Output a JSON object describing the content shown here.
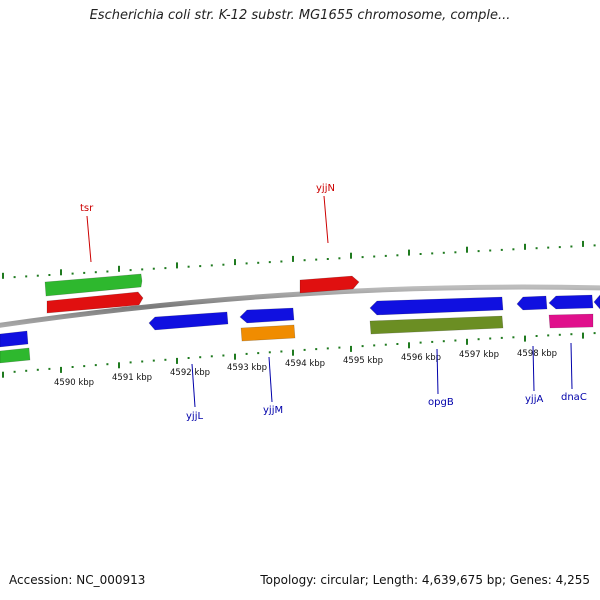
{
  "title": "Escherichia coli str. K-12 substr. MG1655 chromosome, comple...",
  "accession_text": "Accession: NC_000913",
  "stats_text": "Topology: circular; Length: 4,639,675 bp; Genes: 4,255",
  "colors": {
    "forward_label": "#cc0000",
    "reverse_label": "#0000aa",
    "tick": "#1f7a1f",
    "backbone": "#808080"
  },
  "scale_labels": [
    "4590 kbp",
    "4591 kbp",
    "4592 kbp",
    "4593 kbp",
    "4594 kbp",
    "4595 kbp",
    "4596 kbp",
    "4597 kbp",
    "4598 kbp"
  ],
  "gene_labels": [
    {
      "name": "tsr",
      "strand": "forward"
    },
    {
      "name": "yjjN",
      "strand": "forward"
    },
    {
      "name": "yjjL",
      "strand": "reverse"
    },
    {
      "name": "yjjM",
      "strand": "reverse"
    },
    {
      "name": "opgB",
      "strand": "reverse"
    },
    {
      "name": "yjjA",
      "strand": "reverse"
    },
    {
      "name": "dnaC",
      "strand": "reverse"
    }
  ],
  "features": [
    {
      "color": "#2eb82e",
      "label": "tsr"
    },
    {
      "color": "#e01010",
      "label": "tsr"
    },
    {
      "color": "#e01010",
      "label": "yjjN"
    },
    {
      "color": "#1010e0",
      "label": ""
    },
    {
      "color": "#2eb82e",
      "label": ""
    },
    {
      "color": "#1010e0",
      "label": "yjjL"
    },
    {
      "color": "#1010e0",
      "label": "yjjM"
    },
    {
      "color": "#f08c00",
      "label": "yjjM"
    },
    {
      "color": "#1010e0",
      "label": "opgB"
    },
    {
      "color": "#6b8e23",
      "label": "opgB"
    },
    {
      "color": "#1010e0",
      "label": "yjjA"
    },
    {
      "color": "#1010e0",
      "label": "dnaC"
    },
    {
      "color": "#e0108c",
      "label": "dnaC"
    },
    {
      "color": "#1010e0",
      "label": ""
    }
  ]
}
